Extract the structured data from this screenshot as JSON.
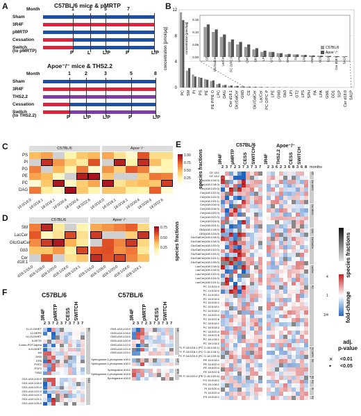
{
  "panels": {
    "A": "A",
    "B": "B",
    "C": "C",
    "D": "D",
    "E": "E",
    "F": "F"
  },
  "colors": {
    "sham": "#1f4fa3",
    "r3f4": "#d7263d",
    "pmrtp": "#1f4fa3",
    "ths": "#7b3fa6",
    "red": "#c22"
  },
  "panelA": {
    "top_title": "C57BL/6 mice & pMRTP",
    "bottom_title": "Apoe⁻/⁻ mice & THS2.2",
    "month_label": "Month",
    "top_months": [
      "1",
      "3",
      "5",
      "7"
    ],
    "bottom_months": [
      "1",
      "2",
      "3",
      "5",
      "8"
    ],
    "top_groups": [
      "Sham",
      "3R4F",
      "pMRTP",
      "Cessation",
      "Switch",
      "(to pMRTP)"
    ],
    "bottom_groups": [
      "Sham",
      "3R4F",
      "THS2.2",
      "Cessation",
      "Switch",
      "(to THS2.2)"
    ],
    "top_markers": [
      "P",
      "L",
      "L/P",
      "P",
      "L/P"
    ],
    "bottom_markers": [
      "P",
      "L/P",
      "L/P",
      "P",
      "L/P"
    ]
  },
  "panelB": {
    "ylabel": "concentration [pmol/µg]",
    "inset_ylabel": "concentration [pmol/µg]",
    "yticks": [
      "0",
      "4",
      "8",
      "12"
    ],
    "inset_yticks": [
      "0.00",
      "0.05",
      "0.10",
      "0.15"
    ],
    "legend": [
      "C57BL/6",
      "Apoe⁻/⁻"
    ]
  },
  "chart_data": {
    "type": "bar",
    "title": "",
    "xlabel": "",
    "ylabel": "concentration [pmol/µg]",
    "ylim": [
      0,
      12
    ],
    "categories": [
      "PC",
      "SM",
      "PI",
      "PS",
      "PE",
      "PE P/PE O",
      "LPC",
      "DAG",
      "Cer d18:1",
      "Glc/GalCer",
      "GM3",
      "CE",
      "Glc/GalCer",
      "LacCer",
      "PC O/PC P",
      "LPE",
      "GM3",
      "Gb3",
      "LPI",
      "GT2",
      "LPS",
      "SPH",
      "PA",
      "LPA",
      "GM1",
      "GD1",
      "S1P",
      "Cer d18:0",
      "SA1P"
    ],
    "series": [
      {
        "name": "C57BL/6",
        "values": [
          11.6,
          2.6,
          2.0,
          1.6,
          1.3,
          1.0,
          0.5,
          0.35,
          0.25,
          0.2,
          0.15,
          0.12,
          0.1,
          0.08,
          0.06,
          0.05,
          0.04,
          0.03,
          0.02,
          0.02,
          0.015,
          0.01,
          0.01,
          0.008,
          0.006,
          0.005,
          0.004,
          0.003,
          0.002
        ]
      },
      {
        "name": "Apoe⁻/⁻",
        "values": [
          10.4,
          3.0,
          1.7,
          1.5,
          1.2,
          1.1,
          0.6,
          0.4,
          0.3,
          0.25,
          0.16,
          0.13,
          0.11,
          0.09,
          0.07,
          0.06,
          0.05,
          0.035,
          0.025,
          0.02,
          0.015,
          0.012,
          0.01,
          0.008,
          0.006,
          0.005,
          0.004,
          0.003,
          0.002
        ]
      }
    ]
  },
  "panelC": {
    "headers": [
      "C57BL/6",
      "Apoe⁻/⁻"
    ],
    "rows": [
      "PS",
      "PI",
      "PG",
      "PE",
      "PC",
      "DAG"
    ],
    "cols": [
      "16:0/16:0",
      "16:0/18:1",
      "18:0/18:1",
      "16:0/20:4",
      "18:0/20:4",
      "18:0/22:6"
    ],
    "legend_title": "species fractions",
    "legend_ticks": [
      "1.00",
      "0.75",
      "0.50",
      "0.25"
    ]
  },
  "panelD": {
    "headers": [
      "C57BL/6",
      "Apoe⁻/⁻"
    ],
    "rows": [
      "SM",
      "LacCer",
      "Glc/GalCer",
      "Gb3",
      "Cer d18:1"
    ],
    "cols": [
      "d18:1/16:0",
      "d18:1/18:0",
      "d18:1/20:0",
      "d18:1/24:0",
      "d18:1/24:1"
    ],
    "legend_title": "species fractions",
    "legend_ticks": [
      "0.75",
      "0.50",
      "0.25"
    ]
  },
  "panelE": {
    "group1": "C57BL/6",
    "group2": "Apoe⁻/⁻",
    "cols1": [
      "3R4F",
      "pMRTP",
      "CESS",
      "SWITCH"
    ],
    "cols2": [
      "3R4F",
      "THS2.2",
      "CESS",
      "SWITCH"
    ],
    "months1": [
      "2",
      "3",
      "7",
      "2",
      "3",
      "7",
      "3",
      "7",
      "3",
      "7"
    ],
    "months2": [
      "2",
      "3",
      "6",
      "2",
      "3",
      "6",
      "8",
      "3",
      "6",
      "8"
    ],
    "months_label": "months",
    "rows": [
      "CE 18:1",
      "CE 18:2",
      "Cer(d18:1/16:0)",
      "Cer(d18:1/18:0)",
      "Cer(d18:1/20:0)",
      "Cer(d18:1/22:0)",
      "Cer(d18:1/24:0)",
      "Cer(d18:1/24:1)",
      "Cer(d18:0/16:0)",
      "Cer(d18:0/18:0)",
      "Cer(d18:0/20:0)",
      "Cer(d18:0/22:0)",
      "Cer(d18:0/24:0)",
      "Cer(d18:0/24:1)",
      "Gb3(d18:1/16:0)",
      "Gb3(d18:1/24:0)",
      "Glc/GalCer(d18:1/16:0)",
      "Glc/GalCer(d18:1/18:0)",
      "Glc/GalCer(d18:1/20:0)",
      "Glc/GalCer(d18:1/22:0)",
      "Glc/GalCer(d18:1/24:0)",
      "Glc/GalCer(d18:1/24:1)",
      "Glc/GalCer(d18:1/26:0)",
      "LacCer(d18:1/16:0)",
      "LacCer(d18:1/18:0)",
      "LacCer(d18:1/22:0)",
      "LacCer(d18:1/24:0)",
      "LacCer(d18:1/24:1)",
      "PC 14:0/14:0",
      "PC 14:0/16:0",
      "PC 14:0/18:1",
      "PC 16:0/16:0",
      "PC 16:0/16:1",
      "PC 16:0/18:1",
      "PC 16:0/18:2",
      "PC 16:0/20:4",
      "PC 16:0/22:6",
      "PC 18:0/18:1",
      "PC 18:0/18:2",
      "PC 18:0/20:4",
      "PC 18:0/22:6",
      "PC 18:1/18:1",
      "PC 18:1/18:2",
      "PC P-16:0/16:1 (PC O-16:1/16:1)",
      "PC P-16:0/18:1 (PC O-16:1/18:1)",
      "PC P-16:0/20:4 (PC O-16:1/20:4)",
      "PE 16:0/18:1",
      "PE 16:0/20:4",
      "PE 18:0/20:4",
      "PE 18:0/22:6",
      "PE P-16:0/20:4 (PE O-16:1/20:4)",
      "PG 16:0/18:1",
      "PG 18:1/18:1",
      "PI 16:0/20:4",
      "PI 18:0/20:4",
      "PS 18:0/18:1"
    ],
    "sections": [
      "CE",
      "Cer d18:1",
      "Cer d18:0",
      "Gb3",
      "Glc/GalCer",
      "LacCer",
      "PC",
      "PC O/PC P",
      "PE",
      "PE P",
      "PG",
      "PI",
      "PS"
    ],
    "fold_label": "fold-change",
    "fold_ticks": [
      "4",
      "1",
      "1/4"
    ],
    "species_label": "species fractions",
    "pvalue_title": "adj.\np-value",
    "pvalue_items": [
      "<0.01",
      "<0.05"
    ]
  },
  "panelF": {
    "left_title": "C57BL/6",
    "right_title": "C57BL/6",
    "cols": [
      "3R4F",
      "pMRTP",
      "CESS",
      "SWITCH"
    ],
    "months": [
      "2",
      "3",
      "7",
      "2",
      "3",
      "7",
      "3",
      "7",
      "3",
      "7"
    ],
    "left_rows": [
      "11,12-DiHET",
      "12-HEPE",
      "14,15-DiHET",
      "5-HETE",
      "6-keto-PGF1alpha",
      "8,9-DiHET",
      "AA",
      "DHA",
      "EPA",
      "PGE2",
      "PGF2",
      "TXB2",
      "GD1-d18:1/16:0",
      "GD1-d18:1/18:0",
      "GD1-d18:1/20:0",
      "GD1-d18:1/22:0",
      "GD1-d18:1/24:0",
      "GD1-d18:1/24:1",
      "GD1-d18:1/26:0"
    ],
    "right_rows": [
      "GM1-d18:1/16:0",
      "GM3-d18:1/16:0",
      "GM3-d18:1/18:0",
      "GM3-d18:1/20:0",
      "GM3-d18:1/22:0",
      "GM3-d18:1/24:0",
      "GM3-d18:1/24:1",
      "Sphingosine-1-phosphate d18:1",
      "Sphingosine-1-phosphate d18:2",
      "Sphingosine d18:1",
      "Sphinganine-1-phosphate d18:0",
      "Sphinganine d18:0"
    ],
    "left_sections": [
      "EIC",
      "GD1"
    ],
    "right_sections": [
      "GM",
      "S1P",
      "SPH"
    ]
  }
}
